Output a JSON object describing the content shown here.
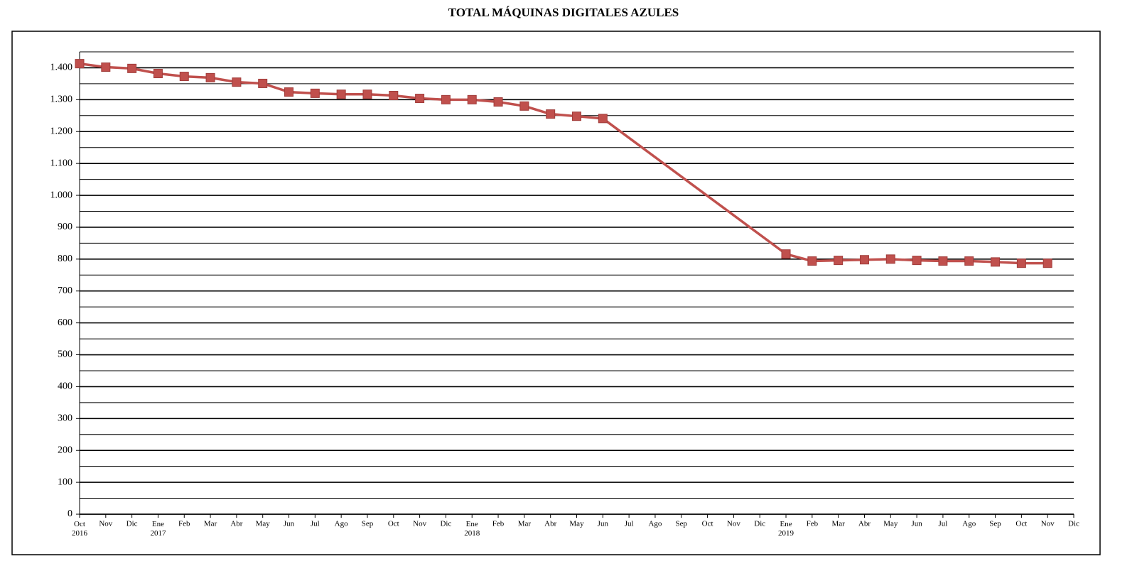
{
  "chart_data": {
    "type": "line",
    "title": "TOTAL MÁQUINAS DIGITALES AZULES",
    "categories": [
      "Oct 2016",
      "Nov",
      "Dic",
      "Ene 2017",
      "Feb",
      "Mar",
      "Abr",
      "May",
      "Jun",
      "Jul",
      "Ago",
      "Sep",
      "Oct",
      "Nov",
      "Dic",
      "Ene 2018",
      "Feb",
      "Mar",
      "Abr",
      "May",
      "Jun",
      "Jul",
      "Ago",
      "Sep",
      "Oct",
      "Nov",
      "Dic",
      "Ene 2019",
      "Feb",
      "Mar",
      "Abr",
      "May",
      "Jun",
      "Jul",
      "Ago",
      "Sep",
      "Oct",
      "Nov",
      "Dic"
    ],
    "series": [
      {
        "color": "#c0504d",
        "values": [
          1413,
          1402,
          1398,
          1382,
          1373,
          1369,
          1355,
          1351,
          1324,
          1320,
          1317,
          1317,
          1313,
          1304,
          1300,
          1300,
          1293,
          1280,
          1255,
          1248,
          1241,
          null,
          null,
          null,
          null,
          null,
          null,
          816,
          794,
          796,
          798,
          800,
          796,
          794,
          794,
          791,
          787,
          787,
          null
        ]
      }
    ],
    "connect_gaps": true,
    "ylim": [
      0,
      1450
    ],
    "yticks": [
      0,
      100,
      200,
      300,
      400,
      500,
      600,
      700,
      800,
      900,
      {
        "value": 1000,
        "label": "1.000"
      },
      {
        "value": 1100,
        "label": "1.100"
      },
      {
        "value": 1200,
        "label": "1.200"
      },
      {
        "value": 1300,
        "label": "1.300"
      },
      {
        "value": 1400,
        "label": "1.400"
      }
    ],
    "minor_yticks": [
      50,
      150,
      250,
      350,
      450,
      550,
      650,
      750,
      850,
      950,
      1050,
      1150,
      1250,
      1350,
      1450
    ],
    "grid": true,
    "marker": "square"
  }
}
